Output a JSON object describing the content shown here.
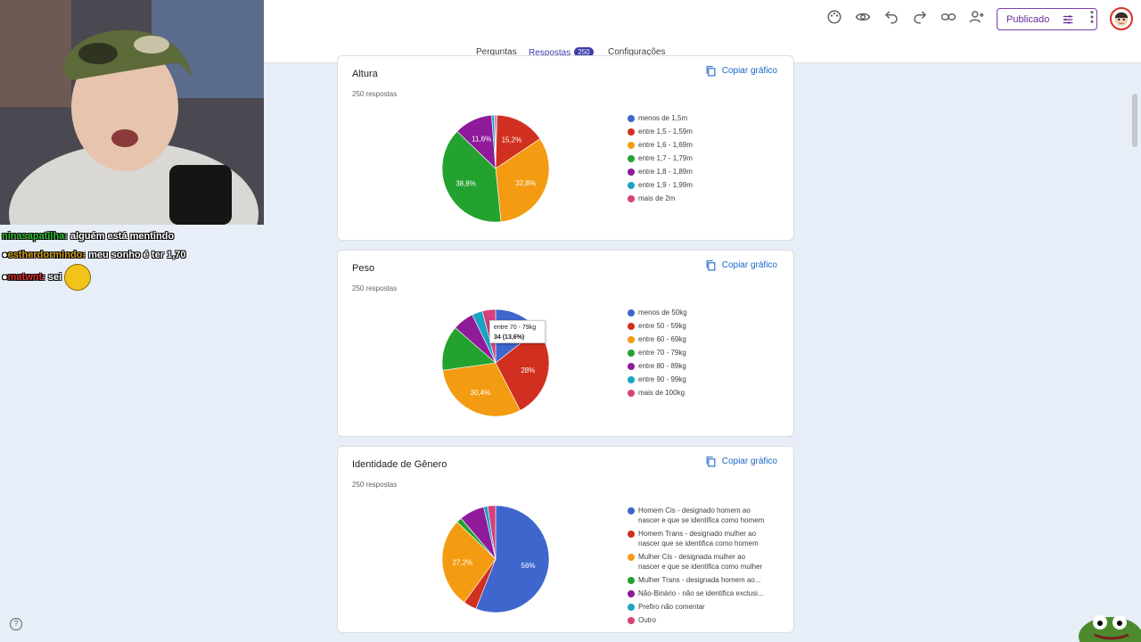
{
  "tabs": [
    {
      "label": "Perguntas"
    },
    {
      "label": "Respostas",
      "count": "250"
    },
    {
      "label": "Configurações"
    }
  ],
  "toolbar": {
    "publish_label": "Publicado",
    "icons": [
      "palette-icon",
      "preview-icon",
      "undo-icon",
      "redo-icon",
      "link-icon",
      "add-collaborator-icon",
      "more-icon"
    ]
  },
  "copy_label": "Copiar gráfico",
  "tooltip": {
    "label": "entre 70 - 79kg",
    "value": "34 (13,6%)"
  },
  "chat": [
    {
      "user": "ninasapatilha:",
      "message": "alguém está mentindo",
      "color": "#31c431"
    },
    {
      "user": "estherdormindo:",
      "message": "meu sonho é ter 1,70",
      "color": "#d4a017"
    },
    {
      "user": "matwnt:",
      "message": "sei",
      "color": "#e0322d"
    }
  ],
  "help_label": "?",
  "colors": {
    "blue": "#3f66cc",
    "red": "#d12f1f",
    "orange": "#f39c12",
    "green": "#23a22f",
    "purple": "#8f1a9a",
    "cyan": "#1aa4c4",
    "pink": "#d8407a"
  },
  "chart_data": [
    {
      "type": "pie",
      "title": "Altura",
      "subtitle": "250 respostas",
      "legend_position": "right",
      "categories": [
        "menos de 1,5m",
        "entre 1,5 - 1,59m",
        "entre 1,6 - 1,69m",
        "entre 1,7 - 1,79m",
        "entre 1,8 - 1,89m",
        "entre 1,9 - 1,99m",
        "mais de 2m"
      ],
      "values": [
        0.4,
        15.2,
        32.8,
        38.8,
        11.6,
        0.8,
        0.4
      ],
      "labels": [
        "",
        "15,2%",
        "32,8%",
        "38,8%",
        "11,6%",
        "",
        ""
      ],
      "colors": [
        "#3f66cc",
        "#d12f1f",
        "#f39c12",
        "#23a22f",
        "#8f1a9a",
        "#1aa4c4",
        "#d8407a"
      ]
    },
    {
      "type": "pie",
      "title": "Peso",
      "subtitle": "250 respostas",
      "legend_position": "right",
      "categories": [
        "menos de 50kg",
        "entre 50 - 59kg",
        "entre 60 - 69kg",
        "entre 70 - 79kg",
        "entre 80 - 89kg",
        "entre 90 - 99kg",
        "mais de 100kg"
      ],
      "values": [
        14.4,
        28,
        30.4,
        13.6,
        6.4,
        3.2,
        4
      ],
      "labels": [
        "14,4%",
        "28%",
        "30,4%",
        "",
        "",
        "",
        ""
      ],
      "colors": [
        "#3f66cc",
        "#d12f1f",
        "#f39c12",
        "#23a22f",
        "#8f1a9a",
        "#1aa4c4",
        "#d8407a"
      ]
    },
    {
      "type": "pie",
      "title": "Identidade de Gênero",
      "subtitle": "250 respostas",
      "legend_position": "right",
      "categories": [
        "Homem Cis - designado homem ao nascer e que se identifica como homem",
        "Homem Trans - designado mulher ao nascer que se identifica como homem",
        "Mulher Cis - designada mulher ao nascer e que se identifica como mulher",
        "Mulher Trans - designada homem ao...",
        "Não-Binário - não se identifica exclusi...",
        "Prefiro não comentar",
        "Outro"
      ],
      "legend_lines": [
        [
          "Homem Cis - designado homem ao",
          "nascer e que se identifica como homem"
        ],
        [
          "Homem Trans - designado mulher ao",
          "nascer que se identifica como homem"
        ],
        [
          "Mulher Cis - designada mulher ao",
          "nascer e que se identifica como mulher"
        ],
        [
          "Mulher Trans - designada homem ao..."
        ],
        [
          "Não-Binário - não se identifica exclusi..."
        ],
        [
          "Prefiro não comentar"
        ],
        [
          "Outro"
        ]
      ],
      "values": [
        56,
        4,
        27.2,
        1.6,
        7.6,
        1.2,
        2.4
      ],
      "labels": [
        "56%",
        "",
        "27,2%",
        "",
        "",
        "",
        ""
      ],
      "colors": [
        "#3f66cc",
        "#d12f1f",
        "#f39c12",
        "#23a22f",
        "#8f1a9a",
        "#1aa4c4",
        "#d8407a"
      ]
    }
  ]
}
